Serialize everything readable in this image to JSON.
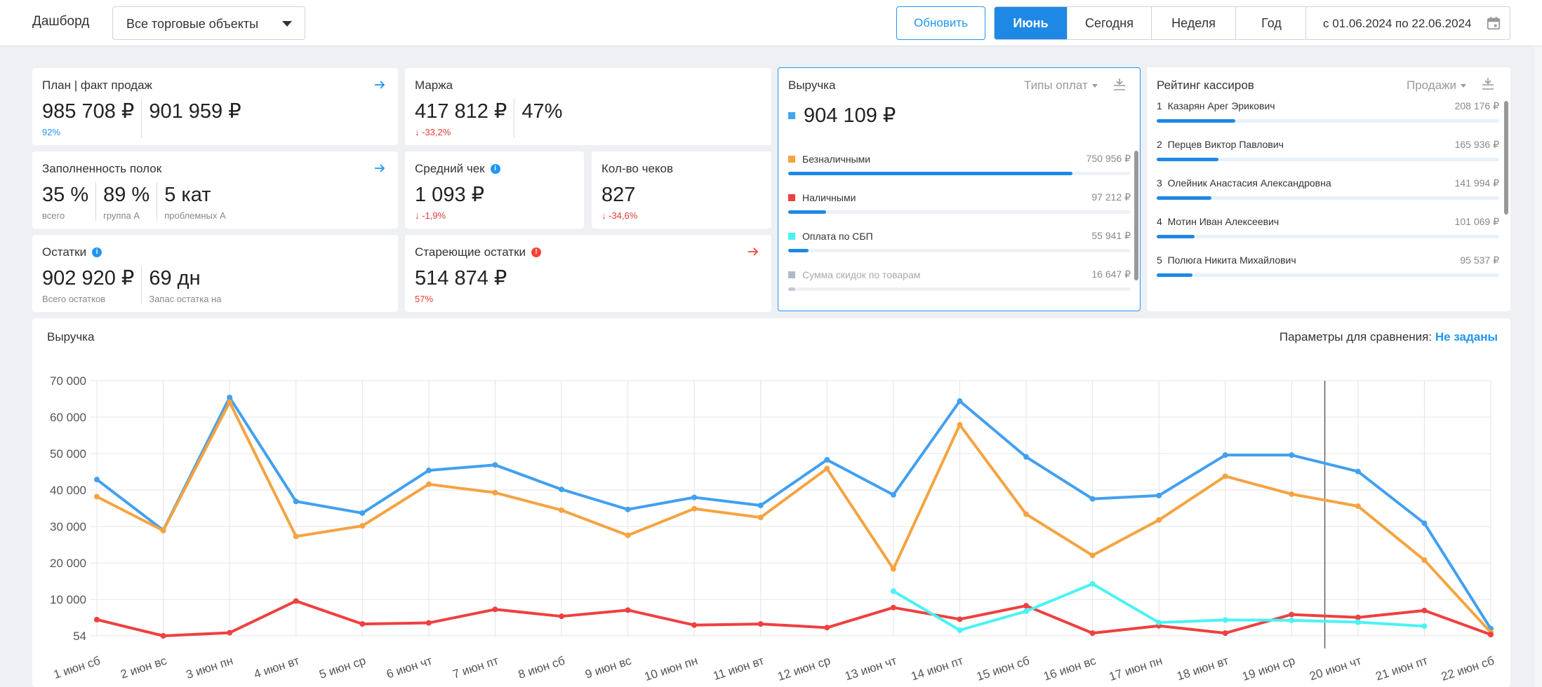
{
  "header": {
    "title": "Дашборд",
    "store_select": "Все торговые объекты",
    "refresh_label": "Обновить",
    "periods": [
      {
        "label": "Июнь",
        "active": true
      },
      {
        "label": "Сегодня",
        "active": false
      },
      {
        "label": "Неделя",
        "active": false
      },
      {
        "label": "Год",
        "active": false
      }
    ],
    "date_range": "с 01.06.2024  по 22.06.2024"
  },
  "kpi": {
    "plan": {
      "title": "План | факт продаж",
      "plan": "985 708 ₽",
      "fact": "901 959 ₽",
      "percent": "92%"
    },
    "margin": {
      "title": "Маржа",
      "value": "417 812 ₽",
      "percent": "47%",
      "change": "-33,2%"
    },
    "shelves": {
      "title": "Заполненность полок",
      "total": "35 %",
      "total_label": "всего",
      "group_a": "89 %",
      "group_a_label": "группа А",
      "problem": "5 кат",
      "problem_label": "проблемных А"
    },
    "avg_check": {
      "title": "Средний чек",
      "value": "1 093 ₽",
      "change": "-1,9%"
    },
    "checks": {
      "title": "Кол-во чеков",
      "value": "827",
      "change": "-34,6%"
    },
    "stock": {
      "title": "Остатки",
      "value": "902 920 ₽",
      "value_label": "Всего остатков",
      "days": "69 дн",
      "days_label": "Запас остатка на"
    },
    "aging": {
      "title": "Стареющие остатки",
      "value": "514 874 ₽",
      "percent": "57%"
    }
  },
  "payments": {
    "title": "Выручка",
    "dropdown": "Типы оплат",
    "total": "904 109 ₽",
    "total_color": "#42a5f5",
    "items": [
      {
        "label": "Безналичными",
        "value": "750 956 ₽",
        "color": "#f5a340",
        "fraction": 0.83,
        "faded": false
      },
      {
        "label": "Наличными",
        "value": "97 212 ₽",
        "color": "#ef4040",
        "fraction": 0.11,
        "faded": false
      },
      {
        "label": "Оплата по СБП",
        "value": "55 941 ₽",
        "color": "#4af3f3",
        "fraction": 0.06,
        "faded": false
      },
      {
        "label": "Сумма скидок по товарам",
        "value": "16 647 ₽",
        "color": "#b0b8c8",
        "fraction": 0.02,
        "faded": true
      }
    ]
  },
  "cashiers": {
    "title": "Рейтинг кассиров",
    "dropdown": "Продажи",
    "items": [
      {
        "rank": "1",
        "name": "Казарян Арег Эрикович",
        "value": "208 176 ₽",
        "fraction": 0.23
      },
      {
        "rank": "2",
        "name": "Перцев Виктор Павлович",
        "value": "165 936 ₽",
        "fraction": 0.18
      },
      {
        "rank": "3",
        "name": "Олейник Анастасия Александровна",
        "value": "141 994 ₽",
        "fraction": 0.16
      },
      {
        "rank": "4",
        "name": "Мотин Иван Алексеевич",
        "value": "101 069 ₽",
        "fraction": 0.11
      },
      {
        "rank": "5",
        "name": "Полюга Никита Михайлович",
        "value": "95 537 ₽",
        "fraction": 0.105
      }
    ]
  },
  "chart_section": {
    "title": "Выручка",
    "compare_label": "Параметры для сравнения:",
    "compare_value": "Не заданы"
  },
  "chart_data": {
    "type": "line",
    "categories": [
      "1 июн  сб",
      "2 июн  вс",
      "3 июн  пн",
      "4 июн  вт",
      "5 июн  ср",
      "6 июн  чт",
      "7 июн  пт",
      "8 июн  сб",
      "9 июн  вс",
      "10 июн  пн",
      "11 июн  вт",
      "12 июн  ср",
      "13 июн  чт",
      "14 июн  пт",
      "15 июн  сб",
      "16 июн  вс",
      "17 июн  пн",
      "18 июн  вт",
      "19 июн  ср",
      "20 июн  чт",
      "21 июн  пт",
      "22 июн  сб"
    ],
    "y_ticks": [
      54,
      10000,
      20000,
      30000,
      40000,
      50000,
      60000,
      70000
    ],
    "y_tick_labels": [
      "54",
      "10 000",
      "20 000",
      "30 000",
      "40 000",
      "50 000",
      "60 000",
      "70 000"
    ],
    "ylim": [
      54,
      70000
    ],
    "grid": true,
    "crosshair_x": 18.5,
    "series": [
      {
        "color": "#42a0f0",
        "values": [
          42900,
          29000,
          65400,
          36900,
          33700,
          45400,
          46900,
          40200,
          34700,
          38000,
          35800,
          48300,
          38700,
          64400,
          49100,
          37600,
          38500,
          49600,
          49600,
          45100,
          30900,
          2000
        ]
      },
      {
        "color": "#f5a340",
        "values": [
          38200,
          28900,
          64100,
          27300,
          30200,
          41600,
          39300,
          34500,
          27600,
          34900,
          32500,
          45900,
          18400,
          57900,
          33400,
          22100,
          31800,
          43800,
          38900,
          35600,
          20800,
          1000
        ]
      },
      {
        "color": "#ef4040",
        "values": [
          4500,
          54,
          900,
          9600,
          3300,
          3600,
          7300,
          5400,
          7100,
          3000,
          3300,
          2300,
          7800,
          4600,
          8300,
          800,
          2800,
          800,
          5900,
          5100,
          7000,
          400
        ]
      },
      {
        "color": "#4af3f3",
        "values": [
          null,
          null,
          null,
          null,
          null,
          null,
          null,
          null,
          null,
          null,
          null,
          null,
          12300,
          1600,
          6800,
          14300,
          3700,
          4400,
          4300,
          3800,
          2700,
          null
        ]
      }
    ]
  }
}
